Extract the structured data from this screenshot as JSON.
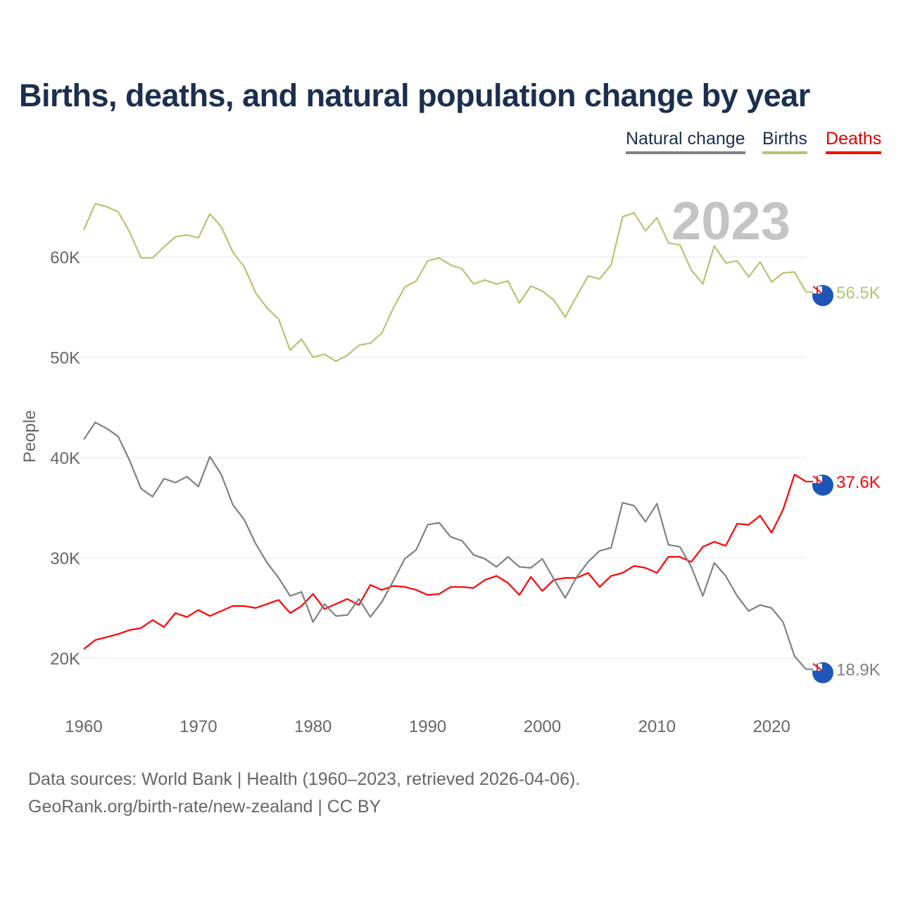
{
  "title": "Births, deaths, and natural population change by year",
  "legend": [
    {
      "label": "Natural change",
      "color": "#808080"
    },
    {
      "label": "Births",
      "color": "#b5c46e"
    },
    {
      "label": "Deaths",
      "color": "#ff0000"
    }
  ],
  "source": {
    "line1": "Data sources: World Bank | Health (1960–2023, retrieved 2026-04-06).",
    "line2": "GeoRank.org/birth-rate/new-zealand | CC BY"
  },
  "chart_data": {
    "type": "line",
    "title": "Births, deaths, and natural population change by year",
    "xlabel": "",
    "ylabel": "People",
    "year_label": "2023",
    "xlim": [
      1960,
      2023
    ],
    "ylim": [
      15000,
      67000
    ],
    "x_ticks": [
      "1960",
      "1970",
      "1980",
      "1990",
      "2000",
      "2010",
      "2020"
    ],
    "y_ticks": [
      {
        "v": 20000,
        "label": "20K"
      },
      {
        "v": 30000,
        "label": "30K"
      },
      {
        "v": 40000,
        "label": "40K"
      },
      {
        "v": 50000,
        "label": "50K"
      },
      {
        "v": 60000,
        "label": "60K"
      }
    ],
    "x_start": 1960,
    "series": [
      {
        "name": "Births",
        "color": "#b5c46e",
        "end_label": "56.5K",
        "values": [
          62.7,
          65.3,
          65.0,
          64.5,
          62.5,
          59.9,
          59.9,
          61.0,
          62.0,
          62.2,
          61.9,
          64.3,
          63.0,
          60.5,
          59.0,
          56.4,
          54.9,
          53.8,
          50.7,
          51.8,
          50.0,
          50.3,
          49.6,
          50.2,
          51.2,
          51.4,
          52.4,
          54.9,
          57.0,
          57.6,
          59.6,
          59.9,
          59.2,
          58.8,
          57.3,
          57.7,
          57.3,
          57.6,
          55.4,
          57.1,
          56.6,
          55.7,
          54.0,
          56.1,
          58.1,
          57.8,
          59.2,
          64.0,
          64.4,
          62.6,
          63.9,
          61.4,
          61.2,
          58.7,
          57.3,
          61.1,
          59.4,
          59.6,
          58.0,
          59.5,
          57.5,
          58.4,
          58.5,
          56.5
        ]
      },
      {
        "name": "Deaths",
        "color": "#ff0000",
        "end_label": "37.6K",
        "values": [
          20.9,
          21.8,
          22.1,
          22.4,
          22.8,
          23.0,
          23.8,
          23.1,
          24.5,
          24.1,
          24.8,
          24.2,
          24.7,
          25.2,
          25.2,
          25.0,
          25.4,
          25.8,
          24.5,
          25.2,
          26.4,
          24.9,
          25.4,
          25.9,
          25.3,
          27.3,
          26.8,
          27.2,
          27.1,
          26.8,
          26.3,
          26.4,
          27.1,
          27.1,
          27.0,
          27.8,
          28.2,
          27.5,
          26.3,
          28.1,
          26.7,
          27.8,
          28.0,
          28.0,
          28.5,
          27.1,
          28.2,
          28.5,
          29.2,
          29.0,
          28.5,
          30.1,
          30.1,
          29.6,
          31.1,
          31.6,
          31.2,
          33.4,
          33.3,
          34.2,
          32.5,
          34.8,
          38.3,
          37.6
        ]
      },
      {
        "name": "Natural change",
        "color": "#808080",
        "end_label": "18.9K",
        "values": [
          41.8,
          43.5,
          42.9,
          42.1,
          39.7,
          36.9,
          36.1,
          37.9,
          37.5,
          38.1,
          37.1,
          40.1,
          38.3,
          35.3,
          33.8,
          31.4,
          29.5,
          28.0,
          26.2,
          26.6,
          23.6,
          25.4,
          24.2,
          24.3,
          25.9,
          24.1,
          25.6,
          27.7,
          29.9,
          30.8,
          33.3,
          33.5,
          32.1,
          31.7,
          30.3,
          29.9,
          29.1,
          30.1,
          29.1,
          29.0,
          29.9,
          27.9,
          26.0,
          28.1,
          29.6,
          30.7,
          31.0,
          35.5,
          35.2,
          33.6,
          35.4,
          31.3,
          31.1,
          29.1,
          26.2,
          29.5,
          28.2,
          26.2,
          24.7,
          25.3,
          25.0,
          23.6,
          20.2,
          18.9
        ]
      }
    ],
    "values_unit": "thousands of people",
    "grid": true,
    "legend_position": "top-right"
  }
}
